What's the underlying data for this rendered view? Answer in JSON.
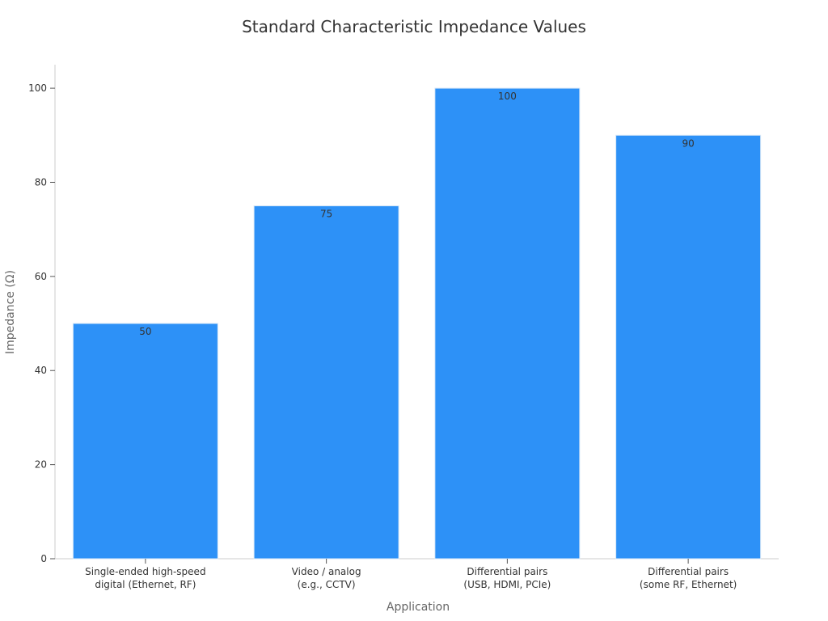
{
  "chart_data": {
    "type": "bar",
    "title": "Standard Characteristic Impedance Values",
    "xlabel": "Application",
    "ylabel": "Impedance (Ω)",
    "categories": [
      [
        "Single-ended high-speed",
        "digital (Ethernet, RF)"
      ],
      [
        "Video / analog",
        "(e.g., CCTV)"
      ],
      [
        "Differential pairs",
        "(USB, HDMI, PCIe)"
      ],
      [
        "Differential pairs",
        "(some RF, Ethernet)"
      ]
    ],
    "values": [
      50,
      75,
      100,
      90
    ],
    "data_labels": [
      "50",
      "75",
      "100",
      "90"
    ],
    "ylim": [
      0,
      105
    ],
    "yticks": [
      0,
      20,
      40,
      60,
      80,
      100
    ],
    "grid": false,
    "legend": "none",
    "colors": {
      "bar": "#2d91f7",
      "bar_edge": "#d6e6f7",
      "axis": "#cccccc",
      "text": "#333333",
      "label": "#666666"
    }
  }
}
